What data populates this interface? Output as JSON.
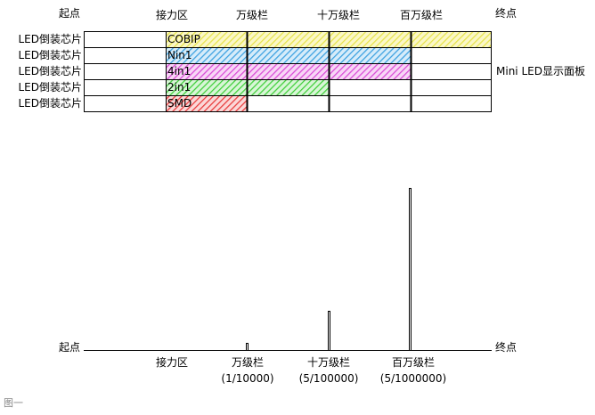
{
  "header": {
    "start": "起点",
    "force_zone": "接力区",
    "wan": "万级栏",
    "shiwan": "十万级栏",
    "baiwan": "百万级栏",
    "end": "终点"
  },
  "rows": [
    {
      "label": "LED倒装芯片",
      "tech": "COBIP",
      "color": "#e6e34a",
      "solid_until": "end"
    },
    {
      "label": "LED倒装芯片",
      "tech": "Nin1",
      "color": "#3aa0e0",
      "solid_until": "baiwan"
    },
    {
      "label": "LED倒装芯片",
      "tech": "4in1",
      "color": "#d94ad6",
      "solid_until": "baiwan"
    },
    {
      "label": "LED倒装芯片",
      "tech": "2in1",
      "color": "#3fcf3a",
      "solid_until": "shiwan"
    },
    {
      "label": "LED倒装芯片",
      "tech": "SMD",
      "color": "#e83a3a",
      "solid_until": "wan"
    }
  ],
  "side_label": "Mini LED显示面板",
  "bottom": {
    "start": "起点",
    "end": "终点",
    "force_zone": "接力区",
    "wan": "万级栏",
    "wan_ratio": "(1/10000)",
    "shiwan": "十万级栏",
    "shiwan_ratio": "(5/100000)",
    "baiwan": "百万级栏",
    "baiwan_ratio": "(5/1000000)"
  },
  "caption": "图一"
}
